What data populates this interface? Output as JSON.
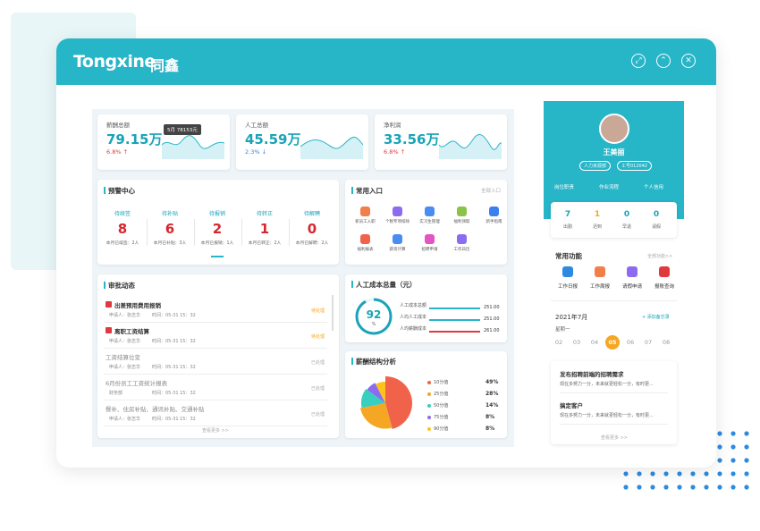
{
  "header": {
    "brand": "Tongxine",
    "brand_cn": "同鑫"
  },
  "tooltip": "5月 78153元",
  "kpis": [
    {
      "label": "薪酬总额",
      "value": "79.15万",
      "change": "6.8% ↑"
    },
    {
      "label": "人工总额",
      "value": "45.59万",
      "change": "2.3% ↓"
    },
    {
      "label": "净利润",
      "value": "33.56万",
      "change": "6.8% ↑"
    }
  ],
  "alerts": {
    "title": "预警中心",
    "items": [
      {
        "label": "待续签",
        "count": "8",
        "note": "本月已续签：2人"
      },
      {
        "label": "待补贴",
        "count": "6",
        "note": "本月已补贴：3人"
      },
      {
        "label": "待报销",
        "count": "2",
        "note": "本月已报销：1人"
      },
      {
        "label": "待转正",
        "count": "1",
        "note": "本月已转正：2人"
      },
      {
        "label": "待解聘",
        "count": "0",
        "note": "本月已解聘：2人"
      }
    ]
  },
  "shortcuts": {
    "title": "常用入口",
    "more": "全部入口",
    "items": [
      "新员工入职",
      "个税专项扣除",
      "实习生管理",
      "福利领取",
      "新手指南",
      "福利报表",
      "薪资计算",
      "招聘申请",
      "工作日历"
    ]
  },
  "approvals": {
    "title": "审批动态",
    "more": "查看更多 >>",
    "items": [
      {
        "title": "出差预用费用报销",
        "applicant": "申请人：张志华",
        "time": "时间：05-31 15：32",
        "status": "待处理"
      },
      {
        "title": "离职工资结算",
        "applicant": "申请人：张志华",
        "time": "时间：05-31 15：32",
        "status": "待处理"
      },
      {
        "title": "工资结算位变",
        "applicant": "申请人：张志华",
        "time": "时间：05-31 15：32",
        "status": "已处理"
      },
      {
        "title": "6月份员工工资统计报表",
        "applicant": "财务部",
        "time": "时间：05-31 15：32",
        "status": "已处理"
      },
      {
        "title": "餐补、住房补贴、通讯补贴、交通补贴",
        "applicant": "申请人：张志华",
        "time": "时间：05-31 15：32",
        "status": "已处理"
      }
    ]
  },
  "cost": {
    "title": "人工成本总量（元）",
    "gauge": 92,
    "unit": "%",
    "rows": [
      {
        "label": "人工成本总额",
        "value": "251.00"
      },
      {
        "label": "人均人工成本",
        "value": "251.00"
      },
      {
        "label": "人均薪酬成本",
        "value": "261.00"
      }
    ]
  },
  "salary": {
    "title": "薪酬结构分析",
    "items": [
      {
        "label": "10分值",
        "value": 49,
        "value_label": "49%",
        "color": "#f0634a"
      },
      {
        "label": "25分值",
        "value": 28,
        "value_label": "28%",
        "color": "#f5a623"
      },
      {
        "label": "50分值",
        "value": 14,
        "value_label": "14%",
        "color": "#36cfc0"
      },
      {
        "label": "75分值",
        "value": 8,
        "value_label": "8%",
        "color": "#8b6cf0"
      },
      {
        "label": "90分值",
        "value": 8,
        "value_label": "8%",
        "color": "#ffc21a"
      }
    ]
  },
  "profile": {
    "name": "王美丽",
    "dept": "人力资源部",
    "id": "工号012042",
    "links": [
      "岗位职责",
      "作业流程",
      "个人信用"
    ],
    "stats": [
      {
        "value": "7",
        "label": "出勤"
      },
      {
        "value": "1",
        "label": "迟到"
      },
      {
        "value": "0",
        "label": "早退"
      },
      {
        "value": "0",
        "label": "请假"
      }
    ]
  },
  "functions": {
    "title": "常用功能",
    "more": "全部功能>>",
    "items": [
      "工作日报",
      "工作周报",
      "请假申请",
      "报账查询"
    ]
  },
  "calendar": {
    "month": "2021年7月",
    "add": "+ 添加备忘录",
    "weekday": "星期一",
    "dates": [
      "02",
      "03",
      "04",
      "05",
      "06",
      "07",
      "08"
    ],
    "selected": 3
  },
  "notes": {
    "items": [
      {
        "title": "发布招聘前端的招聘需求",
        "desc": "现在多努力一分，未来就更轻松一分，有时更..."
      },
      {
        "title": "搞定客户",
        "desc": "现在多努力一分，未来就更轻松一分，有时更..."
      }
    ],
    "more": "查看更多 >>"
  }
}
